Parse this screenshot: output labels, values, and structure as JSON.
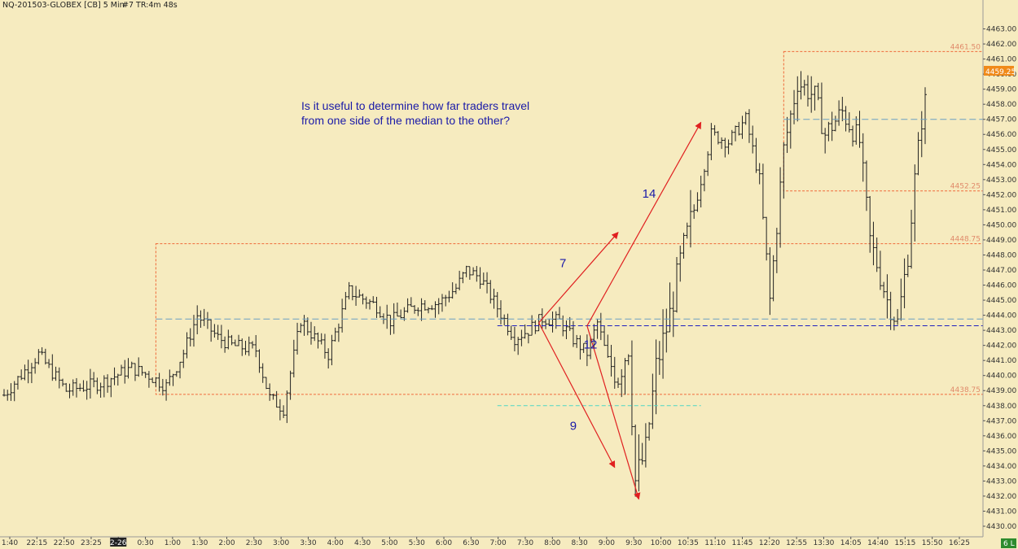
{
  "header": {
    "title": "NQ-201503-GLOBEX [CB]  5 Min",
    "info": "#7 TR:4m 48s"
  },
  "annotation": {
    "line1": "Is it useful to determine how far traders travel",
    "line2": "from one side of the median to the other?"
  },
  "price_tag": {
    "label": "4459.25",
    "value": 4459.25
  },
  "corner_badge": "6 L",
  "colors": {
    "background": "#f6ebbf",
    "bars": "#222222",
    "range_box": "#ef6a3a",
    "median": "#6a9fc3",
    "pivot_line": "#1f1fbf",
    "low_line": "#4dd6c6",
    "arrows": "#e02020",
    "price_tag_bg": "#f08a1a",
    "badge_bg": "#2e8b2e"
  },
  "chart_data": {
    "type": "bar",
    "symbol": "NQ-201503-GLOBEX",
    "interval": "5 Min",
    "ylim": [
      4430,
      4464
    ],
    "y_ticks": [
      4430,
      4431,
      4432,
      4433,
      4434,
      4435,
      4436,
      4437,
      4438,
      4439,
      4440,
      4441,
      4442,
      4443,
      4444,
      4445,
      4446,
      4447,
      4448,
      4449,
      4450,
      4451,
      4452,
      4453,
      4454,
      4455,
      4456,
      4457,
      4458,
      4459,
      4460,
      4461,
      4462,
      4463
    ],
    "x_ticks": [
      "1:40",
      "22:15",
      "22:50",
      "23:25",
      "2-26",
      "0:30",
      "1:00",
      "1:30",
      "2:00",
      "2:30",
      "3:00",
      "3:30",
      "4:00",
      "4:30",
      "5:00",
      "5:30",
      "6:00",
      "6:30",
      "7:00",
      "7:30",
      "8:00",
      "8:30",
      "9:00",
      "9:30",
      "10:00",
      "10:35",
      "11:10",
      "11:45",
      "12:20",
      "12:55",
      "13:30",
      "14:05",
      "14:40",
      "15:15",
      "15:50",
      "16:25"
    ],
    "highlighted_tick": "2-26",
    "bar_count": 268,
    "price_levels": [
      {
        "label": "4461.50",
        "value": 4461.5
      },
      {
        "label": "4452.25",
        "value": 4452.25
      },
      {
        "label": "4448.75",
        "value": 4448.75
      },
      {
        "label": "4438.75",
        "value": 4438.75
      }
    ],
    "range_boxes": [
      {
        "x_start": 44,
        "x_end": 268,
        "low": 4438.75,
        "high": 4448.75
      },
      {
        "x_start": 226,
        "x_end": 268,
        "low": 4452.25,
        "high": 4461.5
      }
    ],
    "median_lines": [
      {
        "x_start": 44,
        "x_end": 268,
        "value": 4443.75
      },
      {
        "x_start": 226,
        "x_end": 268,
        "value": 4457.0
      }
    ],
    "pivot_line": {
      "x_start": 143,
      "x_end": 268,
      "value": 4443.3
    },
    "low_line": {
      "x_start": 143,
      "x_end": 202,
      "value": 4438.0
    },
    "arrows": [
      {
        "from": [
          155,
          4443.5
        ],
        "to": [
          178,
          4449.5
        ]
      },
      {
        "from": [
          155,
          4443.5
        ],
        "to": [
          177,
          4433.9
        ]
      },
      {
        "from": [
          169,
          4443.3
        ],
        "to": [
          184,
          4431.8
        ]
      },
      {
        "from": [
          169,
          4443.3
        ],
        "to": [
          202,
          4456.8
        ]
      }
    ],
    "wave_labels": [
      {
        "text": "7",
        "x": 161,
        "y": 4447.2
      },
      {
        "text": "9",
        "x": 164,
        "y": 4436.4
      },
      {
        "text": "12",
        "x": 168,
        "y": 4441.8
      },
      {
        "text": "14",
        "x": 185,
        "y": 4451.8
      }
    ],
    "anchors": [
      [
        0,
        4438.7
      ],
      [
        10,
        4441.4
      ],
      [
        18,
        4439
      ],
      [
        28,
        4439.5
      ],
      [
        37,
        4440.5
      ],
      [
        42,
        4440
      ],
      [
        47,
        4439.3
      ],
      [
        52,
        4441.5
      ],
      [
        56,
        4444
      ],
      [
        62,
        4442.5
      ],
      [
        66,
        4442
      ],
      [
        73,
        4441.7
      ],
      [
        77,
        4438.5
      ],
      [
        81,
        4437.8
      ],
      [
        86,
        4443.7
      ],
      [
        90,
        4442.5
      ],
      [
        94,
        4441.4
      ],
      [
        100,
        4445.6
      ],
      [
        108,
        4444.6
      ],
      [
        112,
        4443.6
      ],
      [
        120,
        4444.7
      ],
      [
        126,
        4444.8
      ],
      [
        131,
        4445.8
      ],
      [
        134,
        4447
      ],
      [
        138,
        4446.5
      ],
      [
        143,
        4444.5
      ],
      [
        148,
        4442.5
      ],
      [
        152,
        4443
      ],
      [
        156,
        4443.8
      ],
      [
        161,
        4443.6
      ],
      [
        165,
        4442.4
      ],
      [
        169,
        4441.5
      ],
      [
        172,
        4443.5
      ],
      [
        175,
        4441
      ],
      [
        178,
        4440
      ],
      [
        181,
        4442
      ],
      [
        183,
        4433
      ],
      [
        186,
        4435
      ],
      [
        189,
        4440.5
      ],
      [
        193,
        4444
      ],
      [
        196,
        4447.5
      ],
      [
        200,
        4451
      ],
      [
        205,
        4456
      ],
      [
        210,
        4455.5
      ],
      [
        215,
        4457
      ],
      [
        219,
        4453
      ],
      [
        222,
        4445
      ],
      [
        226,
        4455
      ],
      [
        230,
        4459.5
      ],
      [
        235,
        4458.5
      ],
      [
        238,
        4456
      ],
      [
        243,
        4457.5
      ],
      [
        248,
        4455.5
      ],
      [
        251,
        4449
      ],
      [
        256,
        4445
      ],
      [
        259,
        4443.5
      ],
      [
        262,
        4448
      ],
      [
        264,
        4453
      ],
      [
        266,
        4457
      ],
      [
        268,
        4459.25
      ]
    ]
  }
}
